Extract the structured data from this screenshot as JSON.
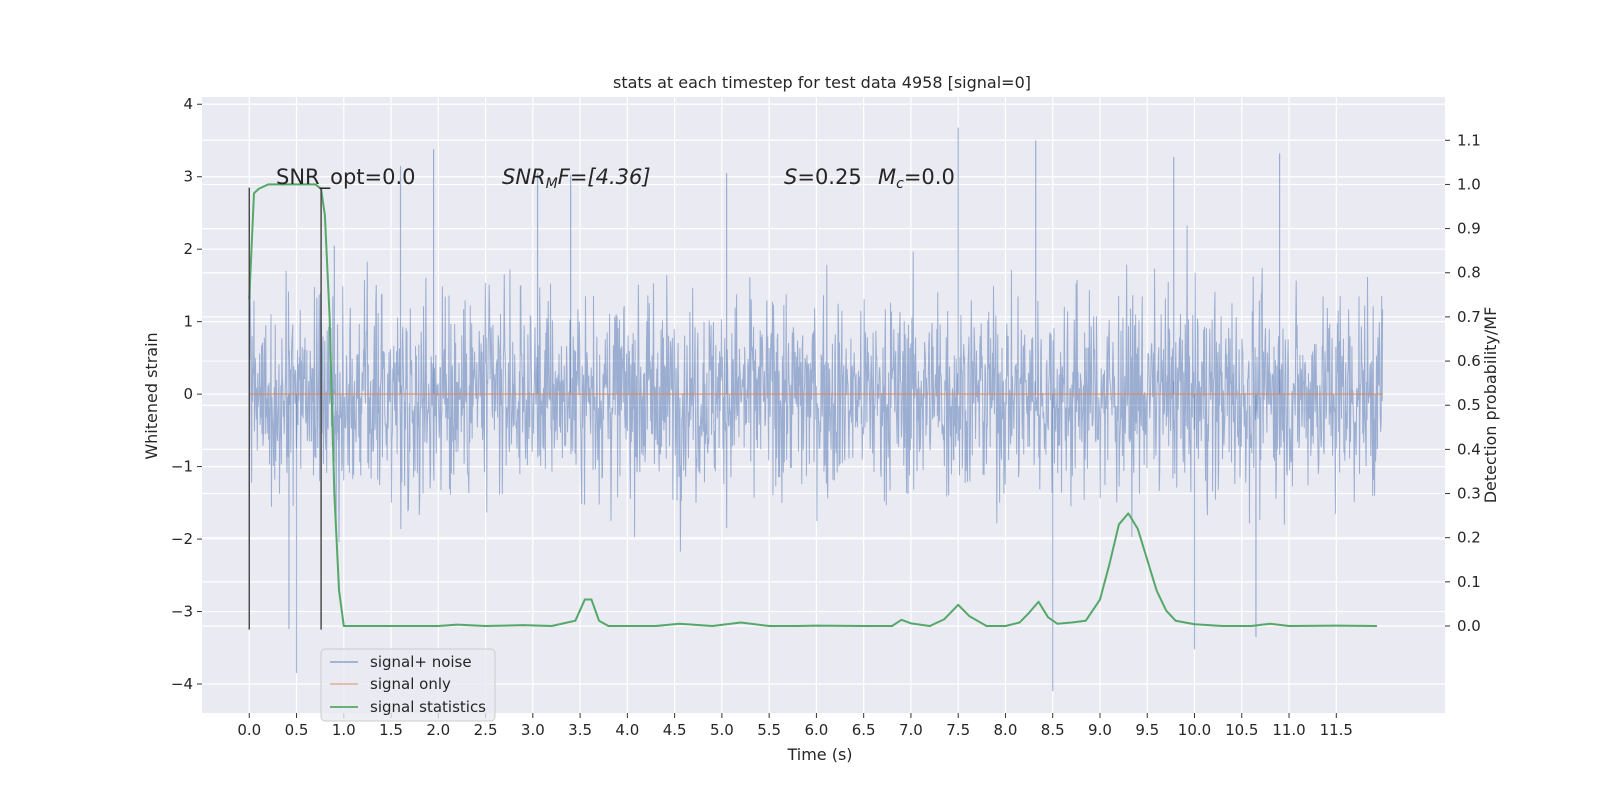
{
  "chart_data": {
    "type": "line",
    "title": "stats at each timestep for test data 4958 [signal=0]",
    "xlabel": "Time (s)",
    "ylabel": "Whitened strain",
    "y2label": "Detection probability/MF",
    "xlim": [
      -0.5,
      12.65
    ],
    "ylim": [
      -4.4,
      4.1
    ],
    "y2lim": [
      -0.197,
      1.198
    ],
    "xticks": [
      0.0,
      0.5,
      1.0,
      1.5,
      2.0,
      2.5,
      3.0,
      3.5,
      4.0,
      4.5,
      5.0,
      5.5,
      6.0,
      6.5,
      7.0,
      7.5,
      8.0,
      8.5,
      9.0,
      9.5,
      10.0,
      10.5,
      11.0,
      11.5
    ],
    "xtick_labels": [
      "0.0",
      "0.5",
      "1.0",
      "1.5",
      "2.0",
      "2.5",
      "3.0",
      "3.5",
      "4.0",
      "4.5",
      "5.0",
      "5.5",
      "6.0",
      "6.5",
      "7.0",
      "7.5",
      "8.0",
      "8.5",
      "9.0",
      "9.5",
      "10.0",
      "10.5",
      "11.0",
      "11.5"
    ],
    "yticks": [
      -4,
      -3,
      -2,
      -1,
      0,
      1,
      2,
      3,
      4
    ],
    "ytick_labels": [
      "−4",
      "−3",
      "−2",
      "−1",
      "0",
      "1",
      "2",
      "3",
      "4"
    ],
    "y2ticks": [
      0.0,
      0.1,
      0.2,
      0.3,
      0.4,
      0.5,
      0.6,
      0.7,
      0.8,
      0.9,
      1.0,
      1.1
    ],
    "y2tick_labels": [
      "0.0",
      "0.1",
      "0.2",
      "0.3",
      "0.4",
      "0.5",
      "0.6",
      "0.7",
      "0.8",
      "0.9",
      "1.0",
      "1.1"
    ],
    "grid": true,
    "legend_position": "lower-left",
    "background_color": "#eaeaf2",
    "vertical_markers": [
      {
        "x": 0.0,
        "y_range": [
          -3.25,
          2.85
        ],
        "color": "#444444"
      },
      {
        "x": 0.76,
        "y_range": [
          -3.25,
          2.85
        ],
        "color": "#444444"
      }
    ],
    "annotations": {
      "snr_opt": "SNR_opt=0.0",
      "snr_mf_base": "SNR",
      "snr_mf_sub": "M",
      "snr_mf_rest": "F=[4.36]",
      "s_text": "=0.25",
      "s_symbol": "S",
      "mc_symbol": "M",
      "mc_sub": "c",
      "mc_text": "=0.0"
    },
    "series": [
      {
        "name": "signal+ noise",
        "kind": "noise",
        "color": "#4c72b0",
        "alpha": 0.5,
        "x_range": [
          0.0,
          11.99
        ],
        "typical_band": [
          -1.5,
          1.65
        ],
        "peak_band": [
          -2.9,
          3.7
        ],
        "notable_peaks": [
          {
            "x": 0.9,
            "y": 2.05
          },
          {
            "x": 1.6,
            "y": 3.15
          },
          {
            "x": 1.95,
            "y": 3.38
          },
          {
            "x": 3.05,
            "y": 3.05
          },
          {
            "x": 3.4,
            "y": 3.02
          },
          {
            "x": 5.05,
            "y": 3.05
          },
          {
            "x": 7.5,
            "y": 3.68
          },
          {
            "x": 8.32,
            "y": 3.5
          },
          {
            "x": 9.78,
            "y": 3.27
          },
          {
            "x": 10.9,
            "y": 3.32
          },
          {
            "x": 0.5,
            "y": -3.85
          },
          {
            "x": 0.42,
            "y": -3.24
          },
          {
            "x": 8.5,
            "y": -4.1
          },
          {
            "x": 10.0,
            "y": -3.52
          },
          {
            "x": 10.65,
            "y": -3.35
          }
        ]
      },
      {
        "name": "signal only",
        "kind": "flat",
        "color": "#dd8452",
        "x": [
          0.0,
          11.99
        ],
        "y": [
          0.0,
          0.0
        ]
      },
      {
        "name": "signal statistics",
        "kind": "line",
        "axis": "right",
        "color": "#55a868",
        "x": [
          0.0,
          0.05,
          0.1,
          0.15,
          0.2,
          0.3,
          0.5,
          0.7,
          0.76,
          0.8,
          0.85,
          0.9,
          0.95,
          1.0,
          1.5,
          2.0,
          2.2,
          2.5,
          2.9,
          3.2,
          3.45,
          3.55,
          3.62,
          3.7,
          3.8,
          4.0,
          4.3,
          4.55,
          4.9,
          5.2,
          5.5,
          5.8,
          6.0,
          6.5,
          6.8,
          6.9,
          7.0,
          7.2,
          7.35,
          7.5,
          7.62,
          7.8,
          8.0,
          8.15,
          8.25,
          8.35,
          8.45,
          8.55,
          8.7,
          8.85,
          9.0,
          9.1,
          9.2,
          9.3,
          9.4,
          9.5,
          9.6,
          9.7,
          9.8,
          10.0,
          10.3,
          10.6,
          10.8,
          11.0,
          11.5,
          11.93
        ],
        "y": [
          0.74,
          0.98,
          0.99,
          0.995,
          1.0,
          1.0,
          1.0,
          1.0,
          0.99,
          0.93,
          0.7,
          0.3,
          0.08,
          0.0,
          0.0,
          0.0,
          0.003,
          0.0,
          0.002,
          0.0,
          0.012,
          0.06,
          0.06,
          0.012,
          0.0,
          0.0,
          0.0,
          0.005,
          0.0,
          0.008,
          0.0,
          0.0,
          0.001,
          0.0,
          0.0,
          0.014,
          0.006,
          0.0,
          0.015,
          0.048,
          0.022,
          0.0,
          0.0,
          0.008,
          0.03,
          0.055,
          0.02,
          0.005,
          0.008,
          0.012,
          0.06,
          0.14,
          0.23,
          0.255,
          0.22,
          0.15,
          0.08,
          0.035,
          0.012,
          0.004,
          0.0,
          0.0,
          0.005,
          0.0,
          0.001,
          0.0
        ]
      }
    ]
  }
}
